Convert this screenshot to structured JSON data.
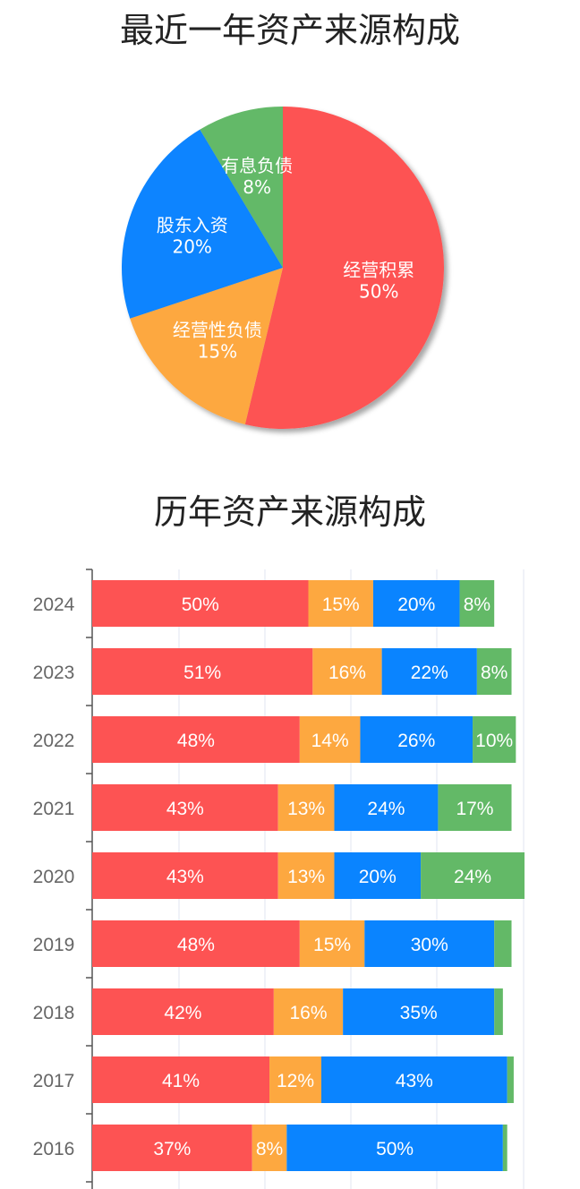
{
  "pie_title": "最近一年资产来源构成",
  "bar_title": "历年资产来源构成",
  "colors": {
    "经营积累": "#fd5353",
    "经营性负债": "#fda840",
    "股东入资": "#0a84ff",
    "有息负债": "#63b967"
  },
  "chart_data": [
    {
      "type": "pie",
      "title": "最近一年资产来源构成",
      "slices": [
        {
          "label": "经营积累",
          "value": 50,
          "value_label": "50%"
        },
        {
          "label": "经营性负债",
          "value": 15,
          "value_label": "15%"
        },
        {
          "label": "股东入资",
          "value": 20,
          "value_label": "20%"
        },
        {
          "label": "有息负债",
          "value": 8,
          "value_label": "8%"
        }
      ]
    },
    {
      "type": "bar",
      "orientation": "horizontal",
      "stacked": true,
      "title": "历年资产来源构成",
      "categories": [
        "2024",
        "2023",
        "2022",
        "2021",
        "2020",
        "2019",
        "2018",
        "2017",
        "2016"
      ],
      "series": [
        {
          "name": "经营积累",
          "values": [
            50,
            51,
            48,
            43,
            43,
            48,
            42,
            41,
            37
          ],
          "labels": [
            "50%",
            "51%",
            "48%",
            "43%",
            "43%",
            "48%",
            "42%",
            "41%",
            "37%"
          ]
        },
        {
          "name": "经营性负债",
          "values": [
            15,
            16,
            14,
            13,
            13,
            15,
            16,
            12,
            8
          ],
          "labels": [
            "15%",
            "16%",
            "14%",
            "13%",
            "13%",
            "15%",
            "16%",
            "12%",
            "8%"
          ]
        },
        {
          "name": "股东入资",
          "values": [
            20,
            22,
            26,
            24,
            20,
            30,
            35,
            43,
            50
          ],
          "labels": [
            "20%",
            "22%",
            "26%",
            "24%",
            "20%",
            "30%",
            "35%",
            "43%",
            "50%"
          ]
        },
        {
          "name": "有息负债",
          "values": [
            8,
            8,
            10,
            17,
            24,
            4,
            2,
            1.5,
            1
          ],
          "labels": [
            "8%",
            "8%",
            "10%",
            "17%",
            "24%",
            "",
            "",
            "",
            ""
          ]
        }
      ],
      "grid": true
    }
  ]
}
